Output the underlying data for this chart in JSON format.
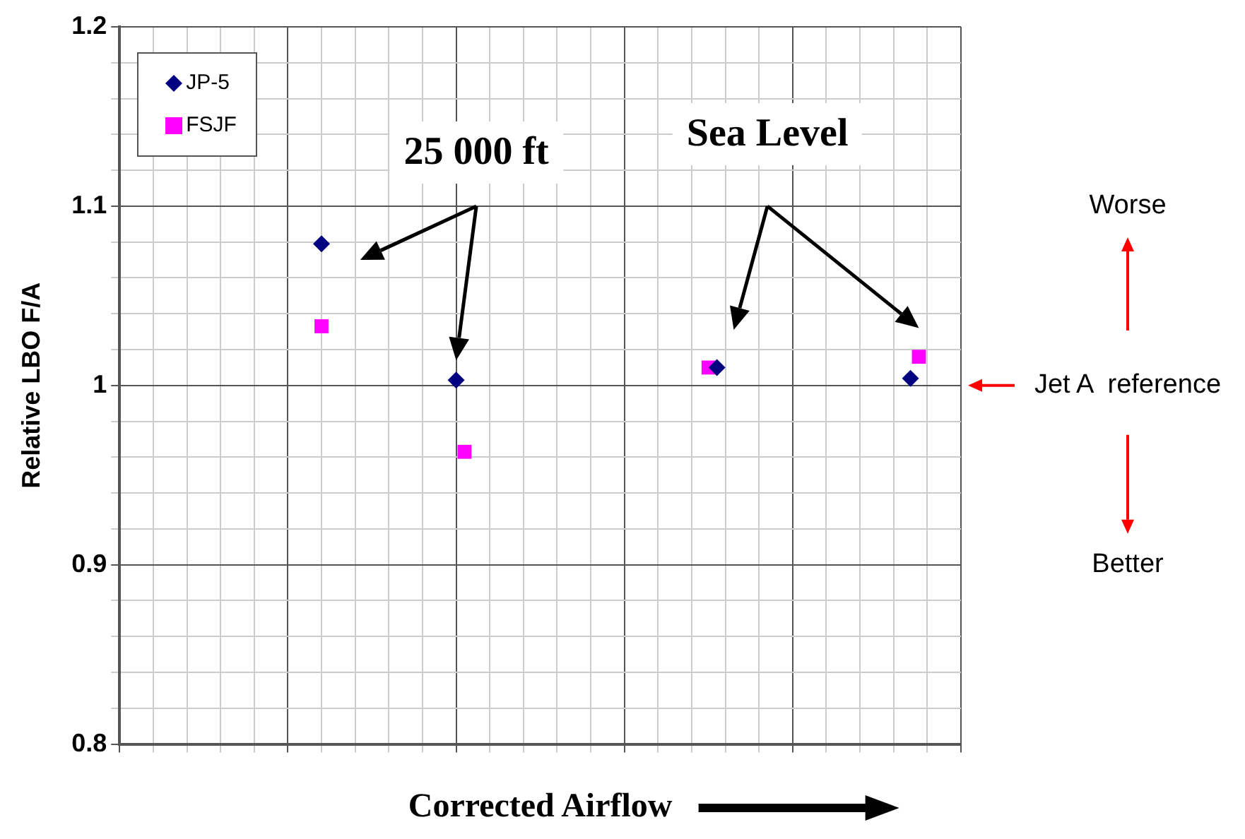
{
  "chart_data": {
    "type": "scatter",
    "xlabel": "Corrected Airflow",
    "ylabel": "Relative LBO F/A",
    "categories": [
      null,
      null,
      null,
      null,
      null,
      null,
      null,
      null,
      null,
      null,
      null,
      null,
      null,
      null,
      null,
      null,
      null,
      null,
      null,
      null,
      null,
      null,
      null,
      null,
      null,
      null,
      null,
      null,
      null,
      null,
      null,
      null,
      null,
      null,
      null,
      null,
      null,
      null,
      null,
      null,
      null,
      null,
      null,
      null,
      null,
      null,
      null,
      null,
      null,
      null,
      null,
      null,
      null,
      null,
      null,
      null,
      null,
      null,
      null,
      null,
      null,
      null,
      null,
      null,
      null,
      null,
      null,
      null,
      null,
      null,
      null,
      null,
      null,
      null,
      null,
      null,
      null,
      null,
      null,
      null,
      null,
      null,
      null,
      null,
      null,
      null,
      null,
      null,
      null,
      null,
      null,
      null,
      null,
      null,
      null,
      null,
      null,
      null,
      null,
      null,
      null
    ],
    "series": [
      {
        "name": "JP-5",
        "color": "#000080",
        "marker": "diamond",
        "values": [
          null,
          null,
          null,
          null,
          null,
          null,
          null,
          null,
          null,
          null,
          null,
          null,
          null,
          null,
          null,
          null,
          null,
          null,
          null,
          null,
          null,
          null,
          null,
          null,
          1.079,
          null,
          null,
          null,
          null,
          null,
          null,
          null,
          null,
          null,
          null,
          null,
          null,
          null,
          null,
          null,
          1.003,
          null,
          null,
          null,
          null,
          null,
          null,
          null,
          null,
          null,
          null,
          null,
          null,
          null,
          null,
          null,
          null,
          null,
          null,
          null,
          null,
          null,
          null,
          null,
          null,
          null,
          null,
          null,
          null,
          null,
          null,
          1.01,
          null,
          null,
          null,
          null,
          null,
          null,
          null,
          null,
          null,
          null,
          null,
          null,
          null,
          null,
          null,
          null,
          null,
          null,
          null,
          null,
          null,
          null,
          1.004,
          null,
          null,
          null,
          null,
          null,
          null
        ]
      },
      {
        "name": "FSJF",
        "color": "#ff00ff",
        "marker": "square",
        "values": [
          null,
          null,
          null,
          null,
          null,
          null,
          null,
          null,
          null,
          null,
          null,
          null,
          null,
          null,
          null,
          null,
          null,
          null,
          null,
          null,
          null,
          null,
          null,
          null,
          1.033,
          null,
          null,
          null,
          null,
          null,
          null,
          null,
          null,
          null,
          null,
          null,
          null,
          null,
          null,
          null,
          null,
          0.963,
          null,
          null,
          null,
          null,
          null,
          null,
          null,
          null,
          null,
          null,
          null,
          null,
          null,
          null,
          null,
          null,
          null,
          null,
          null,
          null,
          null,
          null,
          null,
          null,
          null,
          null,
          null,
          null,
          1.01,
          null,
          null,
          null,
          null,
          null,
          null,
          null,
          null,
          null,
          null,
          null,
          null,
          null,
          null,
          null,
          null,
          null,
          null,
          null,
          null,
          null,
          null,
          null,
          null,
          1.016,
          null,
          null,
          null,
          null,
          null
        ]
      }
    ],
    "ylim": [
      0.8,
      1.2
    ],
    "yticks": [
      {
        "value": 0.8,
        "label": "0.8"
      },
      {
        "value": 0.82,
        "label": null
      },
      {
        "value": 0.84,
        "label": null
      },
      {
        "value": 0.86,
        "label": null
      },
      {
        "value": 0.88,
        "label": null
      },
      {
        "value": 0.9,
        "label": "0.9"
      },
      {
        "value": 0.92,
        "label": null
      },
      {
        "value": 0.94,
        "label": null
      },
      {
        "value": 0.96,
        "label": null
      },
      {
        "value": 0.98,
        "label": null
      },
      {
        "value": 1,
        "label": "1"
      },
      {
        "value": 1.02,
        "label": null
      },
      {
        "value": 1.04,
        "label": null
      },
      {
        "value": 1.06,
        "label": null
      },
      {
        "value": 1.08,
        "label": null
      },
      {
        "value": 1.1,
        "label": "1.1"
      },
      {
        "value": 1.12,
        "label": null
      },
      {
        "value": 1.14,
        "label": null
      },
      {
        "value": 1.16,
        "label": null
      },
      {
        "value": 1.18,
        "label": null
      },
      {
        "value": 1.2,
        "label": "1.2"
      }
    ],
    "grid": true,
    "legend": "top left",
    "annotations": [
      "25 000 ft",
      "Sea Level",
      "Jet A  reference",
      "Worse",
      "Better"
    ]
  }
}
